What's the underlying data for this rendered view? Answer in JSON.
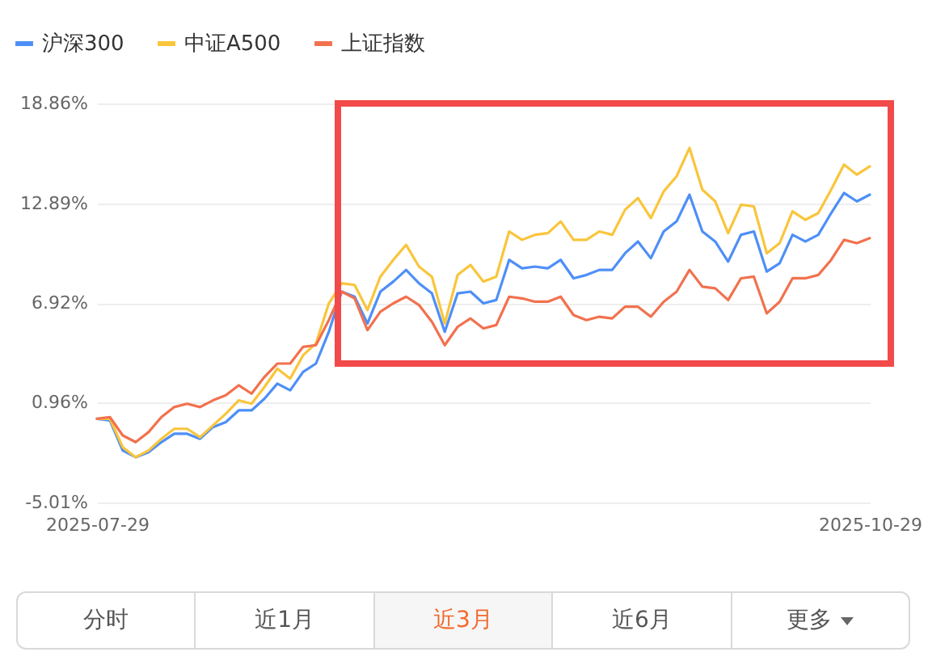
{
  "chart_data": {
    "type": "line",
    "categories": [
      "2025-07-29",
      null,
      null,
      null,
      null,
      null,
      null,
      null,
      null,
      null,
      null,
      null,
      null,
      null,
      null,
      null,
      null,
      null,
      null,
      null,
      null,
      null,
      null,
      null,
      null,
      null,
      null,
      null,
      null,
      null,
      null,
      null,
      null,
      null,
      null,
      null,
      null,
      null,
      null,
      null,
      null,
      null,
      null,
      null,
      null,
      null,
      null,
      null,
      null,
      null,
      null,
      null,
      null,
      null,
      null,
      null,
      null,
      null,
      null,
      null,
      "2025-10-29"
    ],
    "series": [
      {
        "name": "沪深300",
        "color": "#4e8ff7",
        "values": [
          0.0,
          -0.1,
          -1.9,
          -2.3,
          -2.0,
          -1.4,
          -0.9,
          -0.9,
          -1.2,
          -0.5,
          -0.2,
          0.5,
          0.5,
          1.2,
          2.1,
          1.7,
          2.8,
          3.3,
          5.2,
          7.6,
          7.3,
          5.7,
          7.6,
          8.2,
          8.9,
          8.1,
          7.5,
          5.2,
          7.5,
          7.6,
          6.9,
          7.1,
          9.5,
          9.0,
          9.1,
          9.0,
          9.5,
          8.4,
          8.6,
          8.9,
          8.9,
          9.9,
          10.6,
          9.6,
          11.2,
          11.8,
          13.4,
          11.2,
          10.6,
          9.4,
          11.0,
          11.2,
          8.8,
          9.3,
          11.0,
          10.6,
          11.0,
          12.3,
          13.5,
          13.0,
          13.4
        ]
      },
      {
        "name": "中证A500",
        "color": "#f9c53b",
        "values": [
          0.0,
          0.0,
          -1.7,
          -2.3,
          -1.9,
          -1.2,
          -0.6,
          -0.6,
          -1.1,
          -0.4,
          0.3,
          1.1,
          0.9,
          1.9,
          3.0,
          2.4,
          3.8,
          4.5,
          6.9,
          8.1,
          8.0,
          6.5,
          8.5,
          9.5,
          10.4,
          9.1,
          8.5,
          5.7,
          8.6,
          9.2,
          8.2,
          8.5,
          11.2,
          10.7,
          11.0,
          11.1,
          11.8,
          10.7,
          10.7,
          11.2,
          11.0,
          12.5,
          13.2,
          12.0,
          13.6,
          14.5,
          16.2,
          13.7,
          13.0,
          11.1,
          12.8,
          12.7,
          9.9,
          10.5,
          12.4,
          11.9,
          12.3,
          13.7,
          15.2,
          14.6,
          15.1
        ]
      },
      {
        "name": "上证指数",
        "color": "#f2714e",
        "values": [
          0.0,
          0.1,
          -1.0,
          -1.4,
          -0.8,
          0.1,
          0.7,
          0.9,
          0.7,
          1.1,
          1.4,
          2.0,
          1.5,
          2.5,
          3.3,
          3.3,
          4.3,
          4.4,
          5.9,
          7.6,
          7.2,
          5.3,
          6.4,
          6.9,
          7.3,
          6.8,
          5.8,
          4.4,
          5.5,
          6.0,
          5.4,
          5.6,
          7.3,
          7.2,
          7.0,
          7.0,
          7.3,
          6.2,
          5.9,
          6.1,
          6.0,
          6.7,
          6.7,
          6.1,
          7.0,
          7.6,
          8.9,
          7.9,
          7.8,
          7.1,
          8.4,
          8.5,
          6.3,
          7.0,
          8.4,
          8.4,
          8.6,
          9.5,
          10.7,
          10.5,
          10.8
        ]
      }
    ],
    "ylim": [
      -5.01,
      18.86
    ],
    "yticks": [
      {
        "value": -5.01,
        "label": "-5.01%"
      },
      {
        "value": 0.96,
        "label": "0.96%"
      },
      {
        "value": 6.92,
        "label": "6.92%"
      },
      {
        "value": 12.89,
        "label": "12.89%"
      },
      {
        "value": 18.86,
        "label": "18.86%"
      }
    ],
    "grid": "y",
    "legend": "top left",
    "annotations": [
      "分时",
      "近1月",
      "近3月",
      "近6月",
      "更多"
    ]
  }
}
